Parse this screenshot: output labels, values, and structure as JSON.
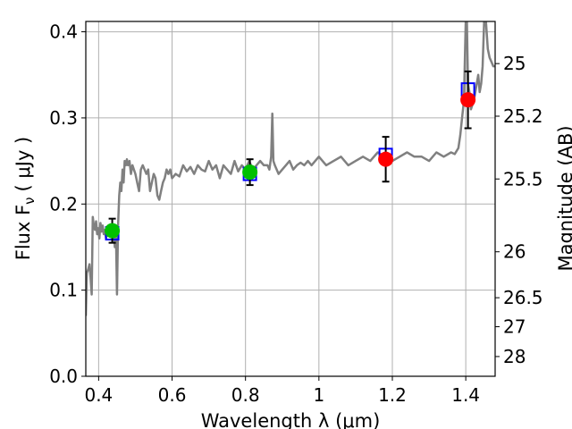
{
  "chart_data": {
    "type": "scatter",
    "title": "",
    "xlabel": "Wavelength  λ (μm)",
    "ylabel": "Flux  F",
    "ylabel_sub": "ν",
    "ylabel_unit": "( μJy )",
    "ylabel_right": "Magnitude (AB)",
    "xlim": [
      0.365,
      1.48
    ],
    "ylim": [
      0.0,
      0.412
    ],
    "grid": true,
    "colors": {
      "spectrum": "#808080",
      "model": "#0000ff",
      "obs_green": "#00c000",
      "obs_red": "#ff0000",
      "errbar": "#000000",
      "grid": "#b0b0b0"
    },
    "x_ticks": [
      {
        "value": 0.4,
        "label": "0.4"
      },
      {
        "value": 0.6,
        "label": "0.6"
      },
      {
        "value": 0.8,
        "label": "0.8"
      },
      {
        "value": 1.0,
        "label": "1"
      },
      {
        "value": 1.2,
        "label": "1.2"
      },
      {
        "value": 1.4,
        "label": "1.4"
      }
    ],
    "y_ticks": [
      {
        "value": 0.0,
        "label": "0.0"
      },
      {
        "value": 0.1,
        "label": "0.1"
      },
      {
        "value": 0.2,
        "label": "0.2"
      },
      {
        "value": 0.3,
        "label": "0.3"
      },
      {
        "value": 0.4,
        "label": "0.4"
      }
    ],
    "mag_ticks": [
      {
        "value": 25,
        "label": "25"
      },
      {
        "value": 25.2,
        "label": "25.2"
      },
      {
        "value": 25.5,
        "label": "25.5"
      },
      {
        "value": 26,
        "label": "26"
      },
      {
        "value": 26.5,
        "label": "26.5"
      },
      {
        "value": 27,
        "label": "27"
      },
      {
        "value": 28,
        "label": "28"
      }
    ],
    "spectrum": {
      "x": [
        0.365,
        0.368,
        0.372,
        0.375,
        0.378,
        0.381,
        0.384,
        0.387,
        0.39,
        0.393,
        0.396,
        0.399,
        0.402,
        0.405,
        0.408,
        0.411,
        0.414,
        0.417,
        0.42,
        0.423,
        0.426,
        0.429,
        0.432,
        0.435,
        0.438,
        0.441,
        0.444,
        0.447,
        0.45,
        0.453,
        0.456,
        0.459,
        0.462,
        0.465,
        0.468,
        0.471,
        0.474,
        0.477,
        0.48,
        0.484,
        0.488,
        0.492,
        0.496,
        0.5,
        0.505,
        0.51,
        0.515,
        0.52,
        0.525,
        0.53,
        0.535,
        0.54,
        0.545,
        0.55,
        0.555,
        0.56,
        0.565,
        0.57,
        0.575,
        0.58,
        0.585,
        0.59,
        0.595,
        0.6,
        0.61,
        0.62,
        0.63,
        0.64,
        0.65,
        0.66,
        0.67,
        0.68,
        0.69,
        0.7,
        0.71,
        0.72,
        0.73,
        0.74,
        0.75,
        0.76,
        0.77,
        0.78,
        0.79,
        0.8,
        0.81,
        0.82,
        0.83,
        0.84,
        0.85,
        0.86,
        0.865,
        0.87,
        0.873,
        0.876,
        0.88,
        0.885,
        0.89,
        0.9,
        0.91,
        0.92,
        0.93,
        0.94,
        0.95,
        0.96,
        0.97,
        0.98,
        0.99,
        1.0,
        1.02,
        1.04,
        1.06,
        1.08,
        1.1,
        1.12,
        1.14,
        1.16,
        1.18,
        1.2,
        1.22,
        1.24,
        1.26,
        1.28,
        1.3,
        1.32,
        1.34,
        1.36,
        1.37,
        1.38,
        1.385,
        1.39,
        1.395,
        1.4,
        1.403,
        1.406,
        1.41,
        1.414,
        1.418,
        1.422,
        1.426,
        1.43,
        1.434,
        1.438,
        1.442,
        1.446,
        1.45,
        1.455,
        1.46,
        1.465,
        1.47,
        1.475,
        1.48
      ],
      "y": [
        0.07,
        0.12,
        0.125,
        0.13,
        0.115,
        0.095,
        0.185,
        0.175,
        0.17,
        0.18,
        0.165,
        0.172,
        0.16,
        0.178,
        0.168,
        0.175,
        0.165,
        0.17,
        0.16,
        0.165,
        0.172,
        0.168,
        0.175,
        0.165,
        0.175,
        0.17,
        0.15,
        0.168,
        0.095,
        0.175,
        0.21,
        0.225,
        0.215,
        0.24,
        0.225,
        0.25,
        0.245,
        0.252,
        0.245,
        0.25,
        0.235,
        0.245,
        0.24,
        0.235,
        0.225,
        0.215,
        0.24,
        0.245,
        0.24,
        0.235,
        0.24,
        0.215,
        0.225,
        0.235,
        0.23,
        0.21,
        0.205,
        0.215,
        0.225,
        0.23,
        0.24,
        0.235,
        0.24,
        0.23,
        0.235,
        0.232,
        0.245,
        0.238,
        0.243,
        0.235,
        0.245,
        0.24,
        0.238,
        0.25,
        0.24,
        0.245,
        0.23,
        0.245,
        0.24,
        0.235,
        0.25,
        0.238,
        0.245,
        0.24,
        0.25,
        0.24,
        0.245,
        0.25,
        0.245,
        0.245,
        0.24,
        0.255,
        0.305,
        0.25,
        0.245,
        0.24,
        0.235,
        0.24,
        0.245,
        0.25,
        0.24,
        0.245,
        0.248,
        0.245,
        0.25,
        0.245,
        0.25,
        0.255,
        0.245,
        0.25,
        0.255,
        0.245,
        0.25,
        0.255,
        0.25,
        0.26,
        0.255,
        0.25,
        0.255,
        0.26,
        0.255,
        0.255,
        0.25,
        0.26,
        0.255,
        0.26,
        0.258,
        0.265,
        0.28,
        0.3,
        0.32,
        0.412,
        0.412,
        0.34,
        0.33,
        0.31,
        0.315,
        0.32,
        0.33,
        0.34,
        0.35,
        0.33,
        0.34,
        0.36,
        0.412,
        0.412,
        0.38,
        0.37,
        0.365,
        0.36,
        0.36
      ]
    },
    "model_points": [
      {
        "x": 0.437,
        "y": 0.166
      },
      {
        "x": 0.812,
        "y": 0.235
      },
      {
        "x": 1.182,
        "y": 0.257
      },
      {
        "x": 1.406,
        "y": 0.333
      }
    ],
    "observations": [
      {
        "x": 0.437,
        "y": 0.169,
        "err": 0.014,
        "color": "green"
      },
      {
        "x": 0.812,
        "y": 0.237,
        "err": 0.015,
        "color": "green"
      },
      {
        "x": 1.182,
        "y": 0.252,
        "err": 0.026,
        "color": "red"
      },
      {
        "x": 1.406,
        "y": 0.321,
        "err": 0.033,
        "color": "red"
      }
    ]
  }
}
